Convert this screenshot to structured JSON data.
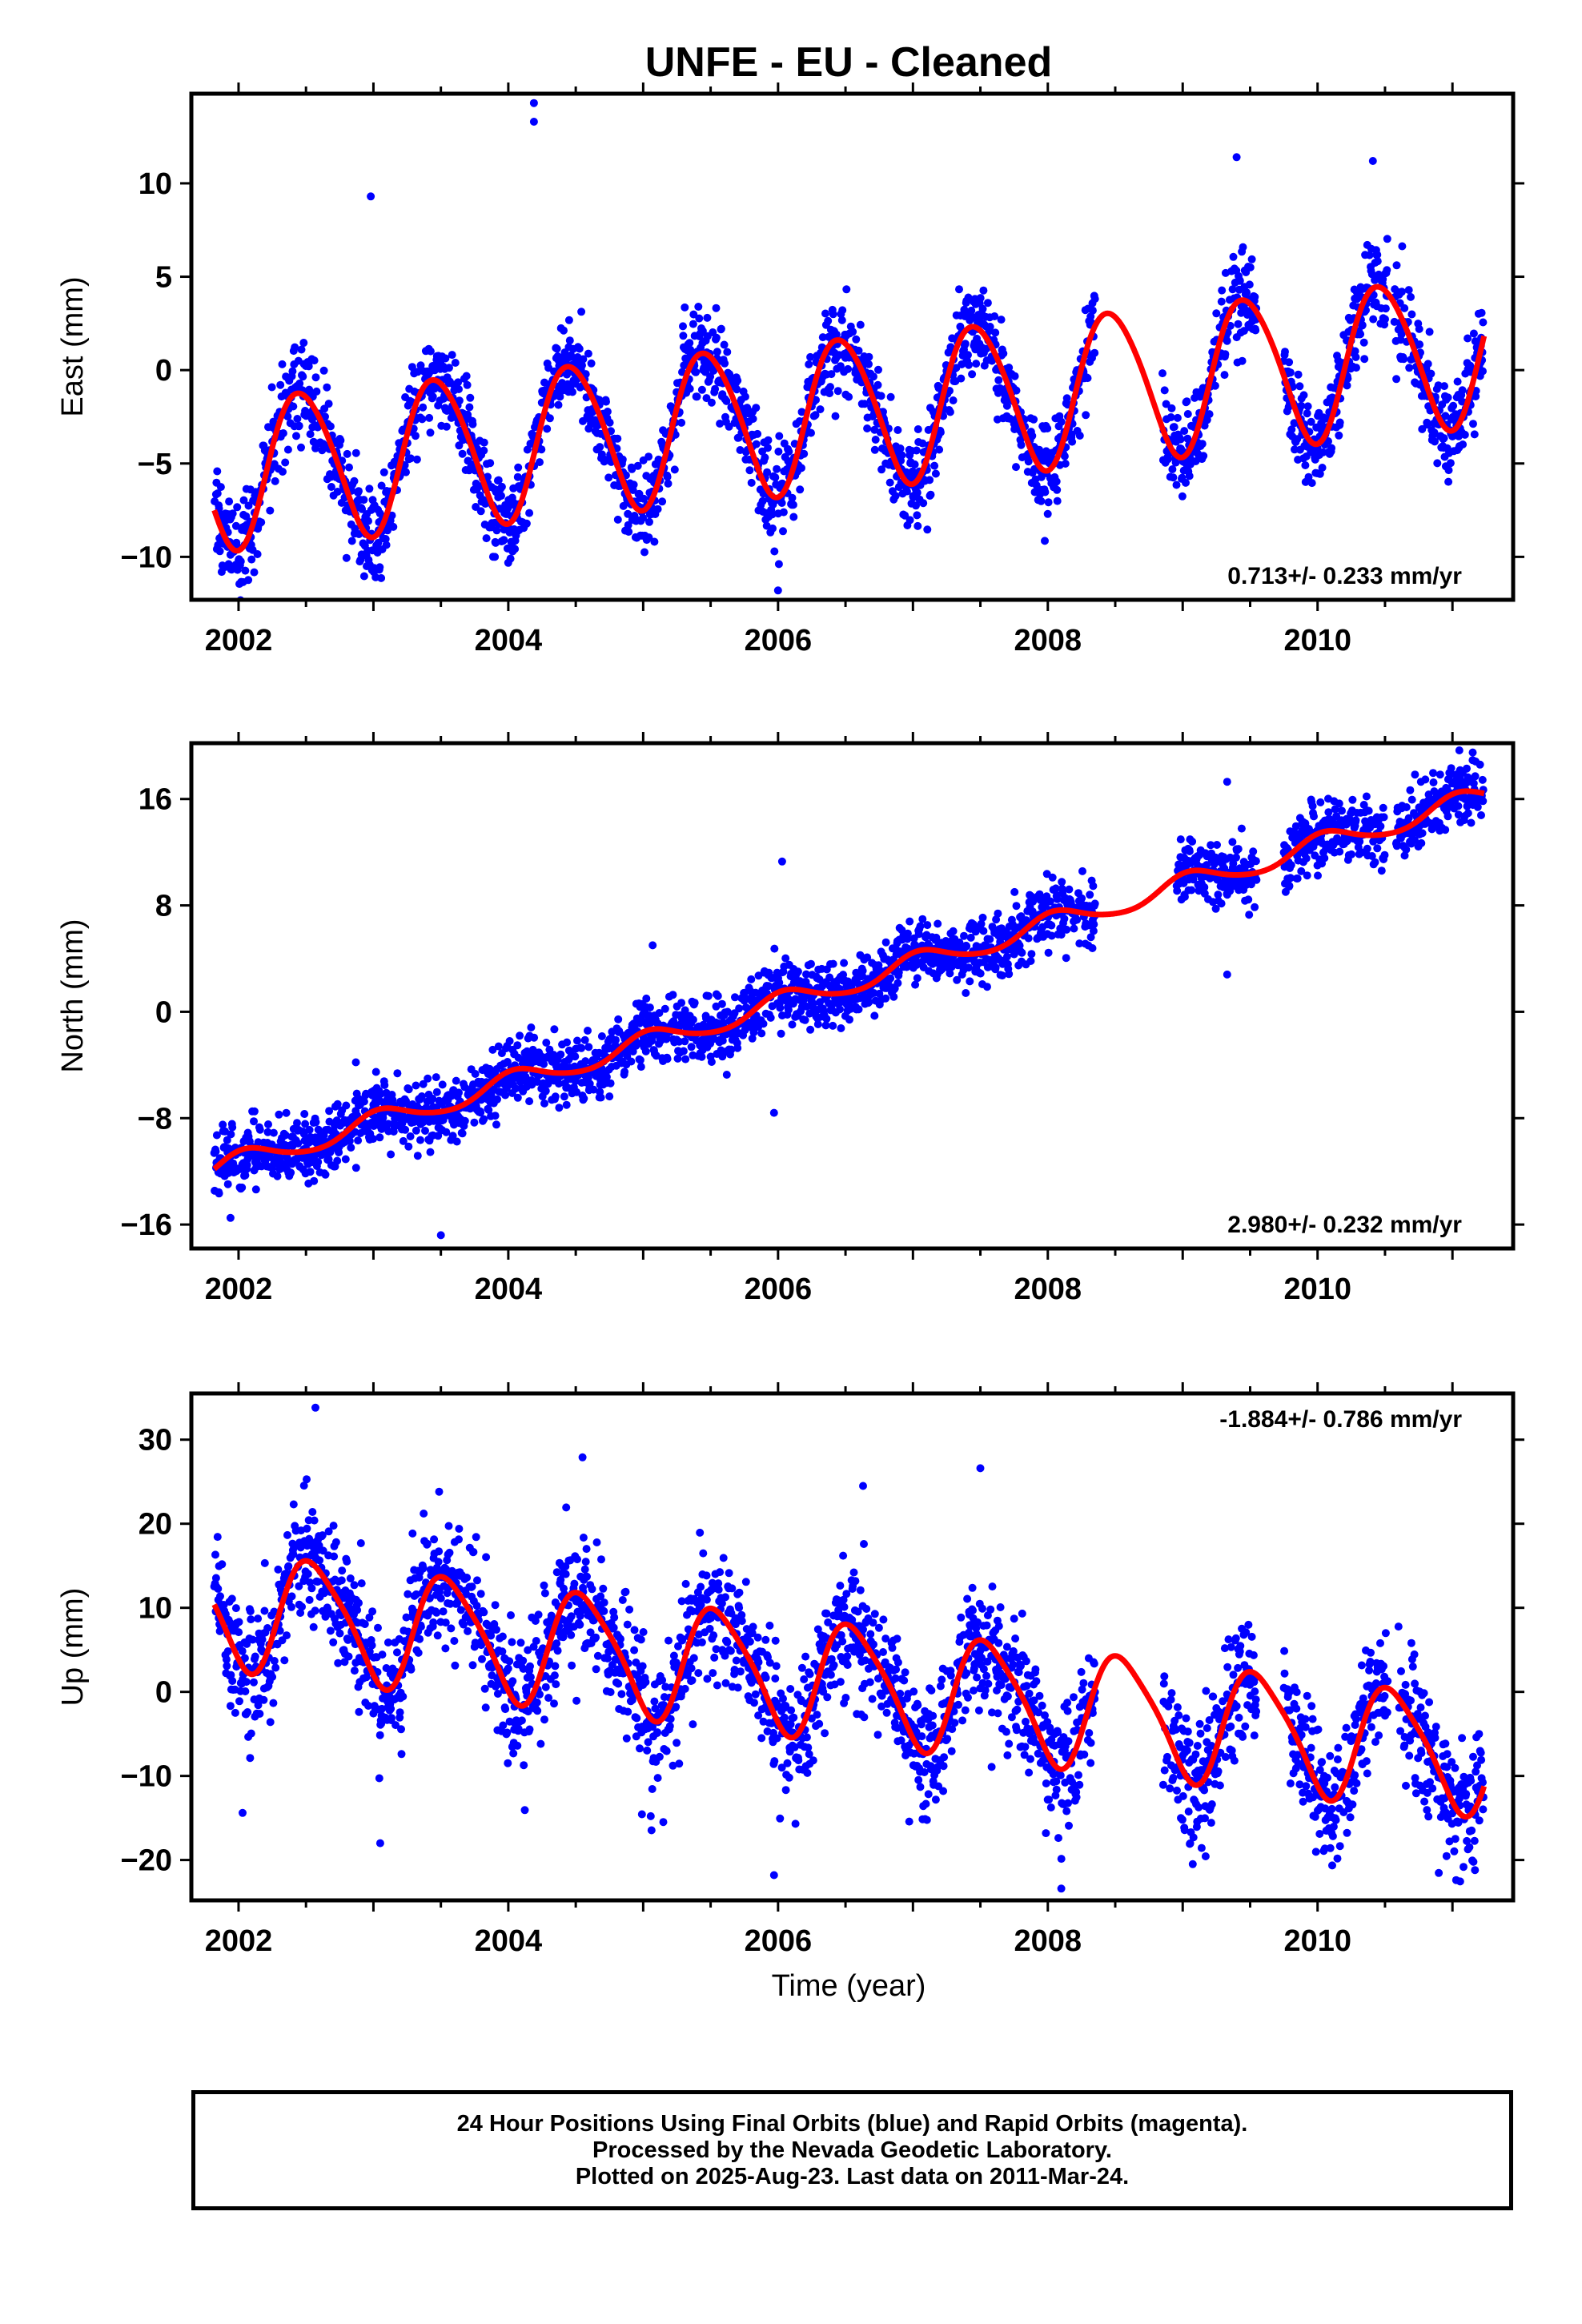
{
  "title": "UNFE  - EU - Cleaned",
  "xlabel": "Time (year)",
  "colors": {
    "data": "#0000ff",
    "model": "#ff0000",
    "frame": "#000000"
  },
  "caption": {
    "line1": "24 Hour Positions Using Final Orbits (blue) and Rapid Orbits (magenta).",
    "line2": "Processed by the Nevada Geodetic Laboratory.",
    "line3": "Plotted on 2025-Aug-23. Last data on 2011-Mar-24."
  },
  "chart_data": [
    {
      "type": "scatter",
      "component": "East",
      "ylabel": "East (mm)",
      "xlim": [
        2001.65,
        2011.45
      ],
      "ylim": [
        -12.3,
        14.8
      ],
      "xticks": [
        2002,
        2004,
        2006,
        2008,
        2010
      ],
      "yticks": [
        -10,
        -5,
        0,
        5,
        10
      ],
      "rate_label": "0.713+/- 0.233 mm/yr",
      "rate_position": "bottom-right",
      "model": {
        "offset": -2.2,
        "trend": 0.713,
        "annual_amp": 4.0,
        "annual_phase": 2002.47,
        "semiannual_amp": 0.4,
        "semiannual_phase": 2002.3,
        "t0": 2006.5
      },
      "scatter_sd": 1.2,
      "data_segments": [
        [
          2001.82,
          2008.35
        ],
        [
          2008.85,
          2009.55
        ],
        [
          2009.75,
          2010.52
        ],
        [
          2010.57,
          2011.23
        ]
      ],
      "outliers": [
        [
          2004.19,
          14.3
        ],
        [
          2004.19,
          13.3
        ],
        [
          2002.98,
          9.3
        ],
        [
          2006.0,
          -11.8
        ],
        [
          2009.4,
          11.4
        ],
        [
          2010.41,
          11.2
        ],
        [
          2002.95,
          -10.5
        ],
        [
          2003.9,
          -10.0
        ]
      ]
    },
    {
      "type": "scatter",
      "component": "North",
      "ylabel": "North (mm)",
      "xlim": [
        2001.65,
        2011.45
      ],
      "ylim": [
        -17.8,
        20.2
      ],
      "xticks": [
        2002,
        2004,
        2006,
        2008,
        2010
      ],
      "yticks": [
        -16,
        -8,
        0,
        8,
        16
      ],
      "rate_label": "2.980+/- 0.232 mm/yr",
      "rate_position": "bottom-right",
      "model": {
        "offset": 0.6,
        "trend": 2.98,
        "annual_amp": 0.8,
        "annual_phase": 2003.05,
        "semiannual_amp": 0.1,
        "semiannual_phase": 2003.0,
        "t0": 2006.0
      },
      "scatter_sd": 1.2,
      "data_segments": [
        [
          2001.82,
          2008.35
        ],
        [
          2008.95,
          2009.55
        ],
        [
          2009.75,
          2010.5
        ],
        [
          2010.58,
          2011.23
        ]
      ],
      "outliers": [
        [
          2005.07,
          5.0
        ],
        [
          2006.03,
          11.3
        ],
        [
          2005.97,
          -7.6
        ],
        [
          2009.33,
          2.8
        ],
        [
          2009.33,
          17.3
        ],
        [
          2011.15,
          19.5
        ],
        [
          2003.5,
          -16.8
        ],
        [
          2002.87,
          -3.8
        ]
      ]
    },
    {
      "type": "scatter",
      "component": "Up",
      "ylabel": "Up (mm)",
      "xlim": [
        2001.65,
        2011.45
      ],
      "ylim": [
        -24.8,
        35.5
      ],
      "xticks": [
        2002,
        2004,
        2006,
        2008,
        2010
      ],
      "yticks": [
        -20,
        -10,
        0,
        10,
        20,
        30
      ],
      "rate_label": "-1.884+/- 0.786 mm/yr",
      "rate_position": "top-right",
      "model": {
        "offset": 2.3,
        "trend": -1.884,
        "annual_amp": 6.8,
        "annual_phase": 2002.56,
        "semiannual_amp": 1.2,
        "semiannual_phase": 2002.4,
        "t0": 2006.0
      },
      "scatter_sd": 3.8,
      "data_segments": [
        [
          2001.82,
          2008.35
        ],
        [
          2008.85,
          2009.55
        ],
        [
          2009.75,
          2010.52
        ],
        [
          2010.6,
          2011.23
        ]
      ],
      "outliers": [
        [
          2002.57,
          33.8
        ],
        [
          2004.55,
          27.9
        ],
        [
          2007.5,
          26.6
        ],
        [
          2005.97,
          -21.8
        ],
        [
          2008.1,
          -23.4
        ],
        [
          2002.03,
          -14.4
        ],
        [
          2006.63,
          24.5
        ],
        [
          2003.05,
          -18.0
        ]
      ]
    }
  ]
}
